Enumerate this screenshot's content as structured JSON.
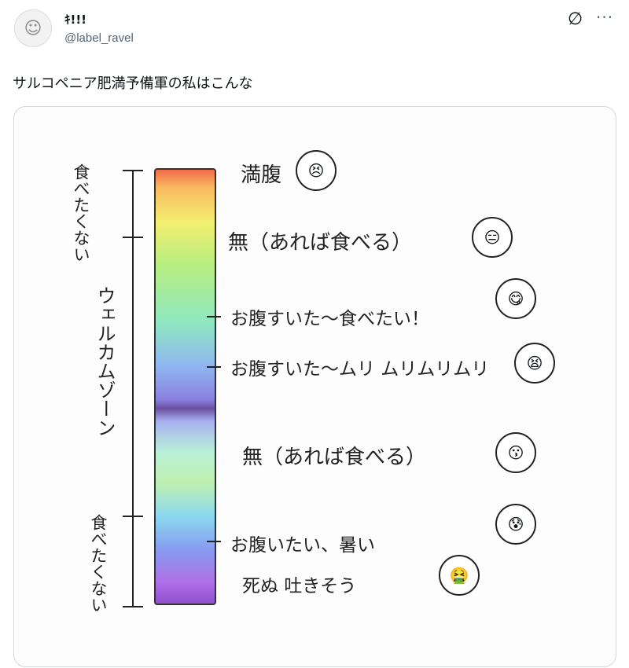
{
  "tweet": {
    "display_name": "ｷ!!!",
    "handle": "@label_ravel",
    "text": "サルコペニア肥満予備軍の私はこんな",
    "grok_icon": "grok-icon",
    "more_label": "···"
  },
  "image": {
    "left_labels": [
      "食べたくない",
      "ウェルカムゾーン",
      "食べたくない"
    ],
    "right_labels": [
      "満腹",
      "無（あれば食べる）",
      "お腹すいた～食べたい！",
      "お腹すいた～ムリ ムリムリムリ",
      "無（あれば食べる）",
      "お腹いたい、暑い",
      "死ぬ 吐きそう"
    ],
    "faces": [
      "😣",
      "😑",
      "😋",
      "😫",
      "😗",
      "😰",
      "🤮"
    ]
  }
}
